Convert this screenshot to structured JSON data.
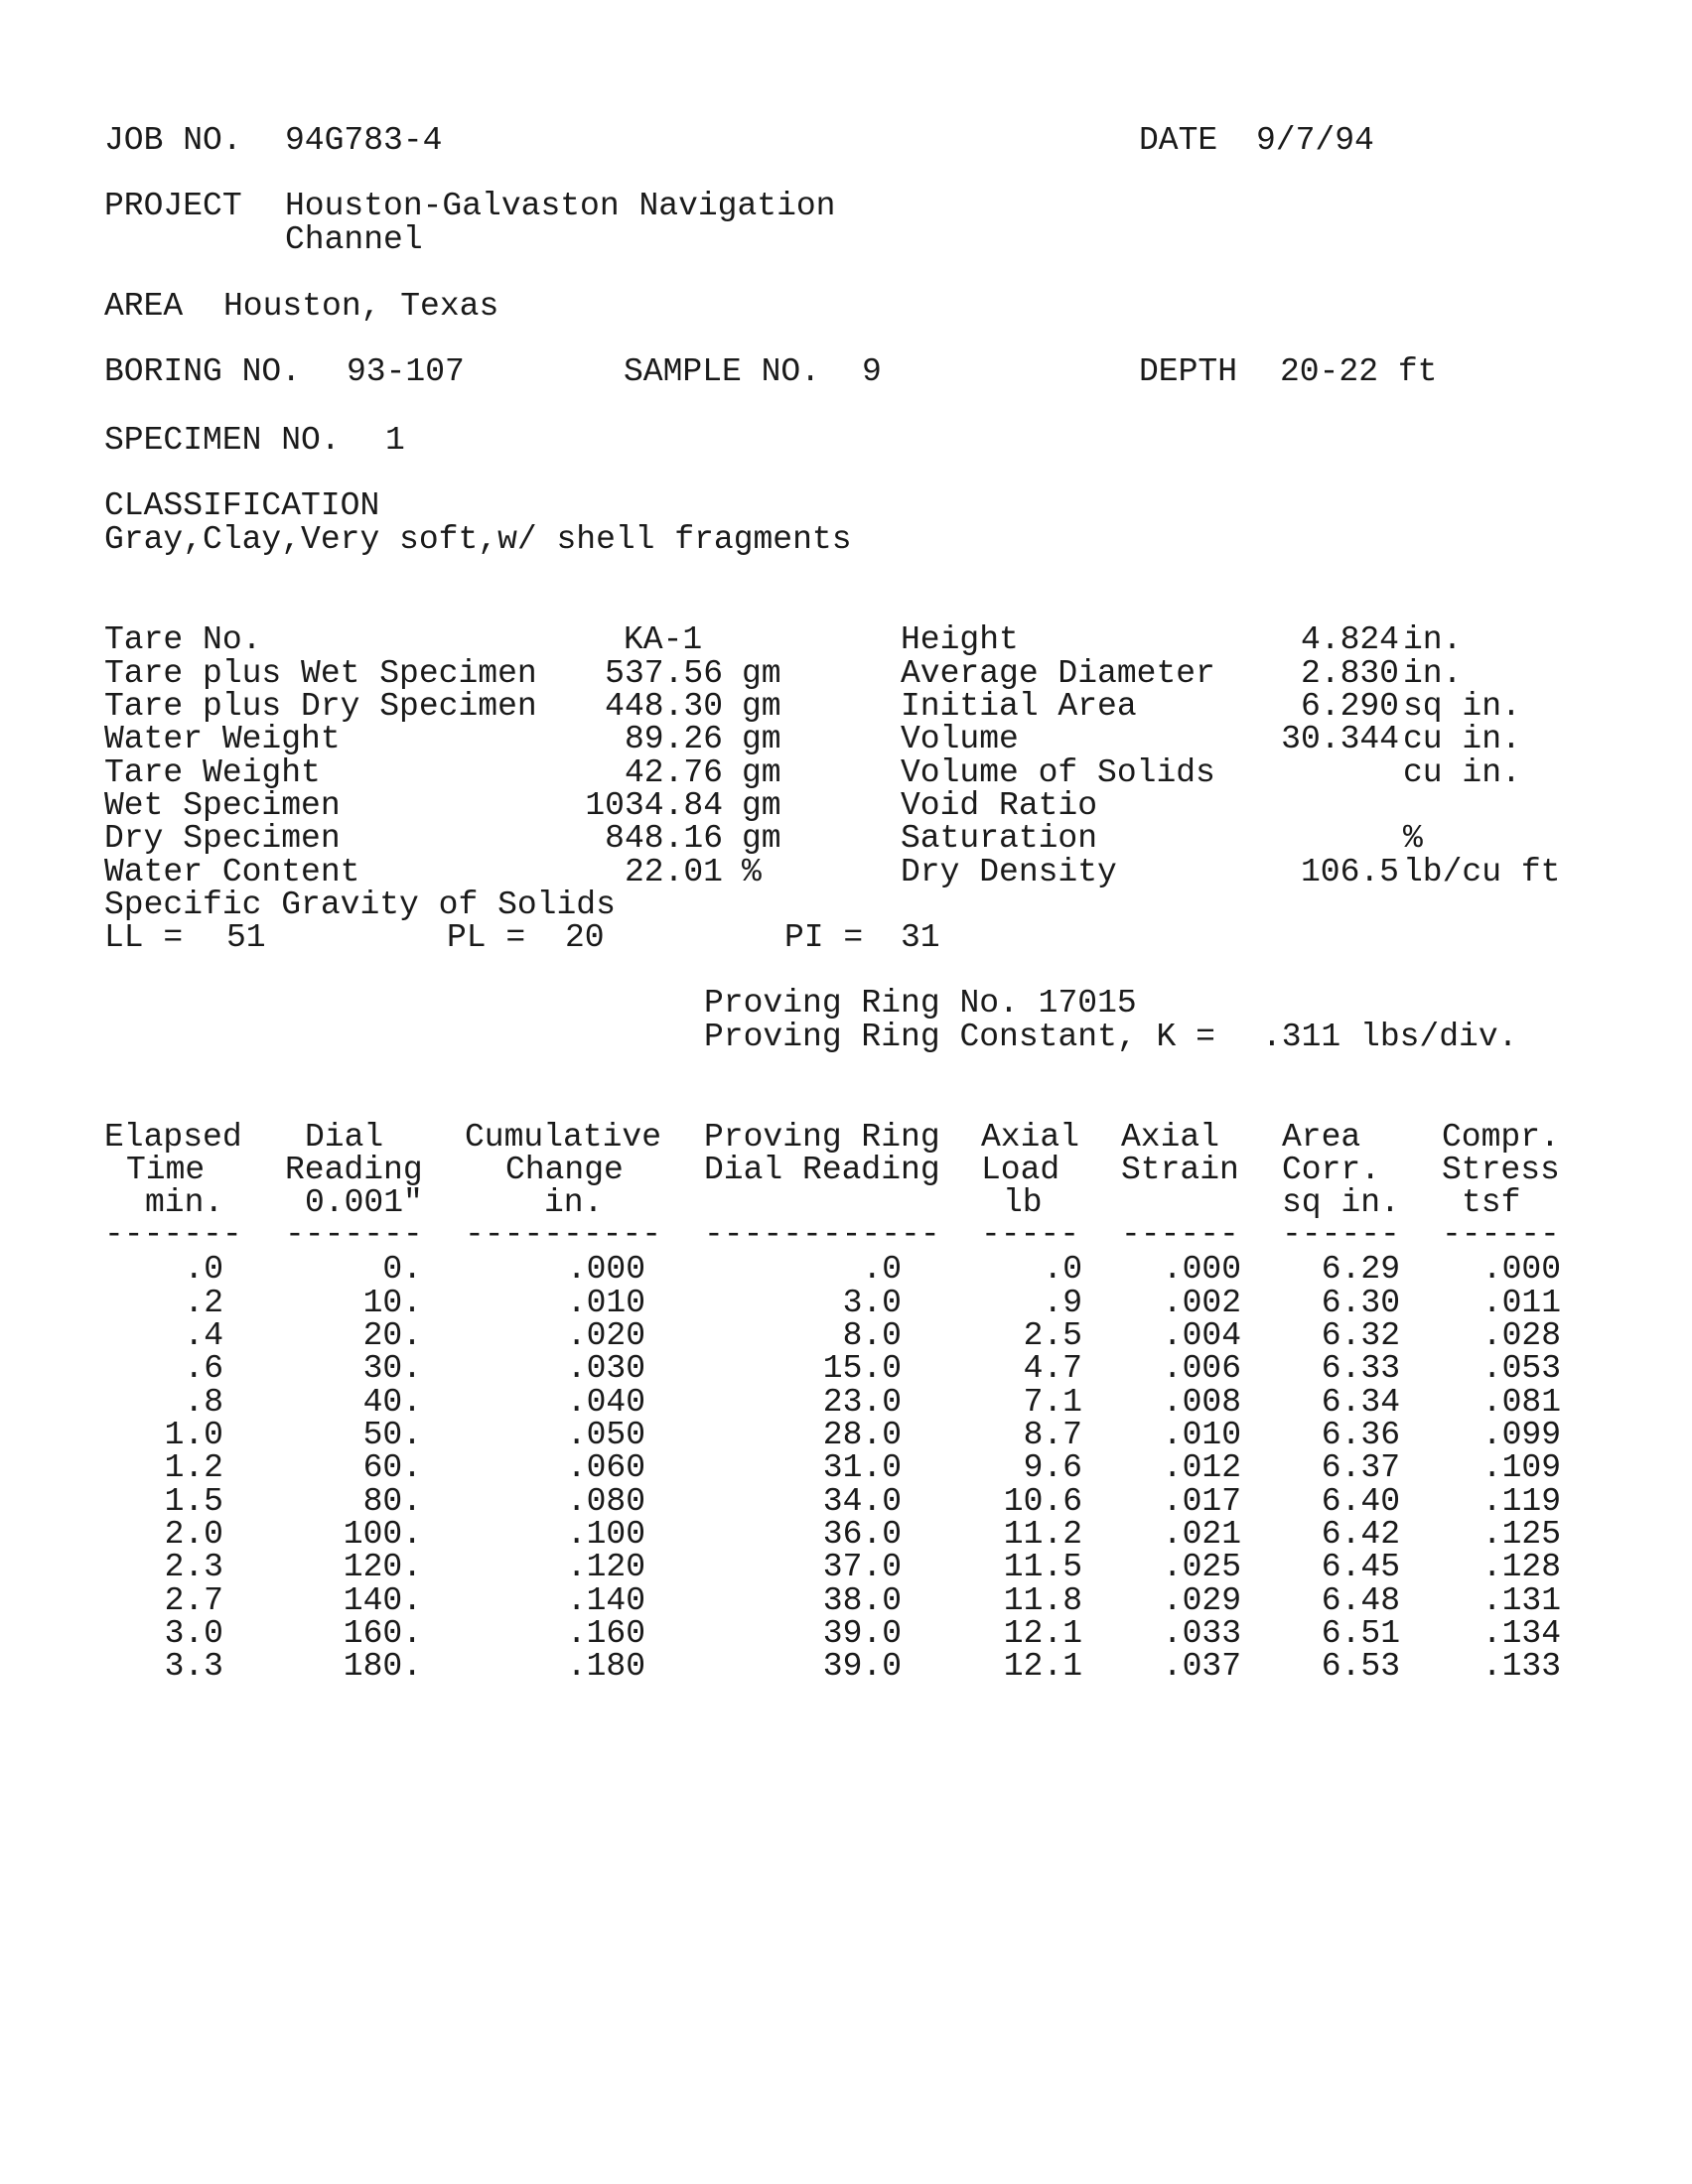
{
  "header": {
    "job_label": "JOB NO.",
    "job_value": "94G783-4",
    "date_label": "DATE",
    "date_value": "9/7/94",
    "project_label": "PROJECT",
    "project_line1": "Houston-Galvaston Navigation",
    "project_line2": "Channel",
    "area_label": "AREA",
    "area_value": "Houston, Texas",
    "boring_label": "BORING NO.",
    "boring_value": "93-107",
    "sample_label": "SAMPLE NO.",
    "sample_value": "9",
    "depth_label": "DEPTH",
    "depth_value": "20-22 ft",
    "specimen_label": "SPECIMEN NO.",
    "specimen_value": "1",
    "classification_label": "CLASSIFICATION",
    "classification_value": "Gray,Clay,Very soft,w/ shell fragments"
  },
  "properties_left": [
    {
      "label": "Tare No.",
      "value": "KA-1",
      "unit": ""
    },
    {
      "label": "Tare plus Wet Specimen",
      "value": "537.56",
      "unit": "gm"
    },
    {
      "label": "Tare plus Dry Specimen",
      "value": "448.30",
      "unit": "gm"
    },
    {
      "label": "Water Weight",
      "value": "89.26",
      "unit": "gm"
    },
    {
      "label": "Tare Weight",
      "value": "42.76",
      "unit": "gm"
    },
    {
      "label": "Wet Specimen",
      "value": "1034.84",
      "unit": "gm"
    },
    {
      "label": "Dry Specimen",
      "value": "848.16",
      "unit": "gm"
    },
    {
      "label": "Water Content",
      "value": "22.01",
      "unit": "%"
    },
    {
      "label": "Specific Gravity of Solids",
      "value": "",
      "unit": ""
    }
  ],
  "properties_right": [
    {
      "label": "Height",
      "value": "4.824",
      "unit": "in."
    },
    {
      "label": "Average Diameter",
      "value": "2.830",
      "unit": "in."
    },
    {
      "label": "Initial Area",
      "value": "6.290",
      "unit": "sq in."
    },
    {
      "label": "Volume",
      "value": "30.344",
      "unit": "cu in."
    },
    {
      "label": "Volume of Solids",
      "value": "",
      "unit": "cu in."
    },
    {
      "label": "Void Ratio",
      "value": "",
      "unit": ""
    },
    {
      "label": "Saturation",
      "value": "",
      "unit": "%"
    },
    {
      "label": "Dry Density",
      "value": "106.5",
      "unit": "lb/cu ft"
    }
  ],
  "limits": {
    "ll_label": "LL =",
    "ll": "51",
    "pl_label": "PL =",
    "pl": "20",
    "pi_label": "PI =",
    "pi": "31"
  },
  "proving_ring": {
    "number_text": "Proving Ring No. 17015",
    "constant_label": "Proving Ring Constant, K =",
    "constant_value": ".311 lbs/div."
  },
  "table": {
    "headers": [
      [
        "Elapsed",
        "Time",
        "min."
      ],
      [
        "Dial",
        "Reading",
        "0.001\""
      ],
      [
        "Cumulative",
        "Change",
        "in."
      ],
      [
        "Proving Ring",
        "Dial Reading",
        ""
      ],
      [
        "Axial",
        "Load",
        "lb"
      ],
      [
        "Axial",
        "Strain",
        ""
      ],
      [
        "Area",
        "Corr.",
        "sq in."
      ],
      [
        "Compr.",
        "Stress",
        "tsf"
      ]
    ],
    "dashes": [
      "-------",
      "-------",
      "----------",
      "------------",
      "-----",
      "------",
      "------",
      "------"
    ],
    "rows": [
      [
        ".0",
        "0.",
        ".000",
        ".0",
        ".0",
        ".000",
        "6.29",
        ".000"
      ],
      [
        ".2",
        "10.",
        ".010",
        "3.0",
        ".9",
        ".002",
        "6.30",
        ".011"
      ],
      [
        ".4",
        "20.",
        ".020",
        "8.0",
        "2.5",
        ".004",
        "6.32",
        ".028"
      ],
      [
        ".6",
        "30.",
        ".030",
        "15.0",
        "4.7",
        ".006",
        "6.33",
        ".053"
      ],
      [
        ".8",
        "40.",
        ".040",
        "23.0",
        "7.1",
        ".008",
        "6.34",
        ".081"
      ],
      [
        "1.0",
        "50.",
        ".050",
        "28.0",
        "8.7",
        ".010",
        "6.36",
        ".099"
      ],
      [
        "1.2",
        "60.",
        ".060",
        "31.0",
        "9.6",
        ".012",
        "6.37",
        ".109"
      ],
      [
        "1.5",
        "80.",
        ".080",
        "34.0",
        "10.6",
        ".017",
        "6.40",
        ".119"
      ],
      [
        "2.0",
        "100.",
        ".100",
        "36.0",
        "11.2",
        ".021",
        "6.42",
        ".125"
      ],
      [
        "2.3",
        "120.",
        ".120",
        "37.0",
        "11.5",
        ".025",
        "6.45",
        ".128"
      ],
      [
        "2.7",
        "140.",
        ".140",
        "38.0",
        "11.8",
        ".029",
        "6.48",
        ".131"
      ],
      [
        "3.0",
        "160.",
        ".160",
        "39.0",
        "12.1",
        ".033",
        "6.51",
        ".134"
      ],
      [
        "3.3",
        "180.",
        ".180",
        "39.0",
        "12.1",
        ".037",
        "6.53",
        ".133"
      ]
    ]
  }
}
